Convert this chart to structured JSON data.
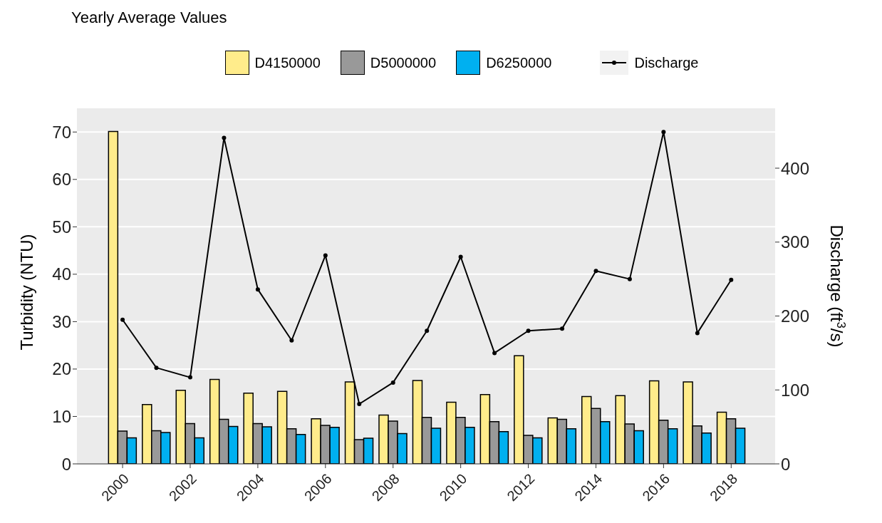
{
  "chart_data": {
    "type": "bar",
    "title": "Yearly Average Values",
    "ylabel": "Turbidity (NTU)",
    "y2label": "Discharge (ft$^{3}$/s)",
    "x": [
      2000,
      2001,
      2002,
      2003,
      2004,
      2005,
      2006,
      2007,
      2008,
      2009,
      2010,
      2011,
      2012,
      2013,
      2014,
      2015,
      2016,
      2017,
      2018
    ],
    "xlim": [
      1998.65,
      2019.3
    ],
    "xticks": [
      2000,
      2002,
      2004,
      2006,
      2008,
      2010,
      2012,
      2014,
      2016,
      2018
    ],
    "ylim": [
      0,
      75
    ],
    "yticks": [
      0,
      10,
      20,
      30,
      40,
      50,
      60,
      70
    ],
    "y2lim": [
      0,
      481
    ],
    "y2ticks": [
      0,
      100,
      200,
      300,
      400
    ],
    "grid": "y",
    "legend": "top",
    "series": [
      {
        "name": "D4150000",
        "color": "#ffec8b",
        "values": [
          70.1,
          12.5,
          15.5,
          17.8,
          14.9,
          15.3,
          9.5,
          17.3,
          10.3,
          17.6,
          13.0,
          14.6,
          22.8,
          9.7,
          14.2,
          14.4,
          17.5,
          17.3,
          10.9
        ]
      },
      {
        "name": "D5000000",
        "color": "#999999",
        "values": [
          6.9,
          7.0,
          8.5,
          9.4,
          8.5,
          7.4,
          8.1,
          5.1,
          9.0,
          9.8,
          9.8,
          8.9,
          6.0,
          9.4,
          11.7,
          8.4,
          9.2,
          8.0,
          9.5
        ]
      },
      {
        "name": "D6250000",
        "color": "#00b0f0",
        "values": [
          5.5,
          6.6,
          5.5,
          7.9,
          7.8,
          6.2,
          7.7,
          5.4,
          6.4,
          7.5,
          7.7,
          6.8,
          5.5,
          7.4,
          8.9,
          7.0,
          7.4,
          6.5,
          7.5
        ]
      },
      {
        "name": "Discharge",
        "type": "line",
        "axis": "y2",
        "color": "#000000",
        "marker": "circle",
        "values": [
          195,
          130,
          117,
          441,
          236,
          167,
          282,
          81,
          110,
          180,
          280,
          150,
          180,
          183,
          261,
          250,
          449,
          177,
          249
        ]
      }
    ]
  }
}
